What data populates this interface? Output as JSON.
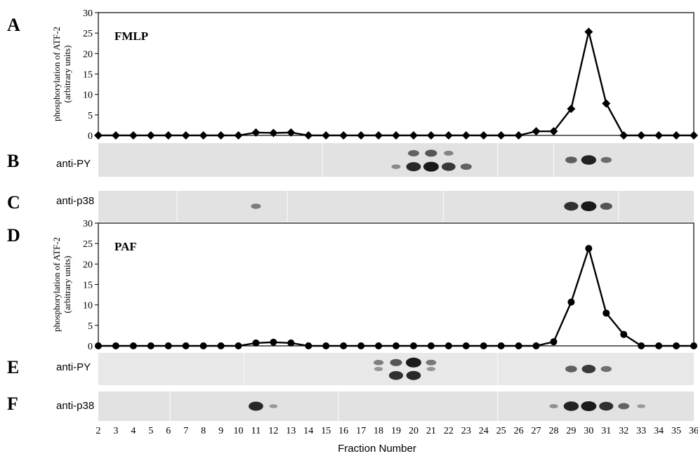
{
  "panel_letters": [
    "A",
    "B",
    "C",
    "D",
    "E",
    "F"
  ],
  "chart_data": [
    {
      "type": "line",
      "panel": "A",
      "title": "FMLP",
      "ylabel": "phosphorylation of ATF-2 (arbitrary units)",
      "ylabel_lines": [
        "phosphorylation of ATF-2",
        "(arbitrary units)"
      ],
      "xlabel": "",
      "ylim": [
        0,
        30
      ],
      "yticks": [
        0,
        5,
        10,
        15,
        20,
        25,
        30
      ],
      "grid": false,
      "series": [
        {
          "marker": "diamond",
          "x": [
            2,
            3,
            4,
            5,
            6,
            7,
            8,
            9,
            10,
            11,
            12,
            13,
            14,
            15,
            16,
            17,
            18,
            19,
            20,
            21,
            22,
            23,
            24,
            25,
            26,
            27,
            28,
            29,
            30,
            31,
            32,
            33,
            34,
            35,
            36
          ],
          "values": [
            0,
            0,
            0,
            0,
            0,
            0,
            0,
            0,
            0,
            0.7,
            0.6,
            0.7,
            0,
            0,
            0,
            0,
            0,
            0,
            0,
            0,
            0,
            0,
            0,
            0,
            0,
            1.0,
            1.0,
            6.5,
            25.3,
            7.8,
            0,
            0,
            0,
            0,
            0
          ]
        }
      ]
    },
    {
      "type": "line",
      "panel": "D",
      "title": "PAF",
      "ylabel": "phosphorylation of ATF-2 (arbitrary units)",
      "ylabel_lines": [
        "phosphorylation of ATF-2",
        "(arbitrary units)"
      ],
      "xlabel": "Fraction Number",
      "ylim": [
        0,
        30
      ],
      "yticks": [
        0,
        5,
        10,
        15,
        20,
        25,
        30
      ],
      "xticks": [
        2,
        3,
        4,
        5,
        6,
        7,
        8,
        9,
        10,
        11,
        12,
        13,
        14,
        15,
        16,
        17,
        18,
        19,
        20,
        21,
        22,
        23,
        24,
        25,
        26,
        27,
        28,
        29,
        30,
        31,
        32,
        33,
        34,
        35,
        36
      ],
      "grid": false,
      "series": [
        {
          "marker": "circle",
          "x": [
            2,
            3,
            4,
            5,
            6,
            7,
            8,
            9,
            10,
            11,
            12,
            13,
            14,
            15,
            16,
            17,
            18,
            19,
            20,
            21,
            22,
            23,
            24,
            25,
            26,
            27,
            28,
            29,
            30,
            31,
            32,
            33,
            34,
            35,
            36
          ],
          "values": [
            0,
            0,
            0,
            0,
            0,
            0,
            0,
            0,
            0,
            0.7,
            0.9,
            0.7,
            0,
            0,
            0,
            0,
            0,
            0,
            0,
            0,
            0,
            0,
            0,
            0,
            0,
            0,
            1.0,
            10.7,
            23.8,
            8.0,
            2.8,
            0,
            0,
            0,
            0
          ]
        }
      ]
    }
  ],
  "blots": [
    {
      "panel": "B",
      "label": "anti-PY",
      "band_color": "#1a1a1a",
      "segment_boundaries": [
        14.8,
        24.8,
        28.0
      ],
      "bands": [
        {
          "fraction": 19,
          "intensity": 0.25,
          "row": "low"
        },
        {
          "fraction": 20,
          "intensity": 0.9,
          "row": "low"
        },
        {
          "fraction": 20,
          "intensity": 0.5,
          "row": "high"
        },
        {
          "fraction": 21,
          "intensity": 1.0,
          "row": "low"
        },
        {
          "fraction": 21,
          "intensity": 0.6,
          "row": "high"
        },
        {
          "fraction": 22,
          "intensity": 0.8,
          "row": "low"
        },
        {
          "fraction": 22,
          "intensity": 0.3,
          "row": "high"
        },
        {
          "fraction": 23,
          "intensity": 0.5,
          "row": "low"
        },
        {
          "fraction": 29,
          "intensity": 0.55,
          "row": "mid"
        },
        {
          "fraction": 30,
          "intensity": 0.95,
          "row": "mid"
        },
        {
          "fraction": 31,
          "intensity": 0.45,
          "row": "mid"
        }
      ]
    },
    {
      "panel": "C",
      "label": "anti-p38",
      "band_color": "#1a1a1a",
      "segment_boundaries": [
        6.5,
        12.8,
        21.7,
        31.7
      ],
      "bands": [
        {
          "fraction": 11,
          "intensity": 0.35,
          "row": "mid"
        },
        {
          "fraction": 29,
          "intensity": 0.85,
          "row": "mid"
        },
        {
          "fraction": 30,
          "intensity": 1.0,
          "row": "mid"
        },
        {
          "fraction": 31,
          "intensity": 0.6,
          "row": "mid"
        }
      ]
    },
    {
      "panel": "E",
      "label": "anti-PY",
      "band_color": "#1a1a1a",
      "segment_boundaries": [
        10.3,
        24.8
      ],
      "bands": [
        {
          "fraction": 18,
          "intensity": 0.35,
          "row": "high"
        },
        {
          "fraction": 18,
          "intensity": 0.2,
          "row": "mid"
        },
        {
          "fraction": 19,
          "intensity": 0.6,
          "row": "high"
        },
        {
          "fraction": 19,
          "intensity": 0.85,
          "row": "low"
        },
        {
          "fraction": 20,
          "intensity": 1.0,
          "row": "high"
        },
        {
          "fraction": 20,
          "intensity": 0.9,
          "row": "low"
        },
        {
          "fraction": 21,
          "intensity": 0.4,
          "row": "high"
        },
        {
          "fraction": 21,
          "intensity": 0.2,
          "row": "mid"
        },
        {
          "fraction": 29,
          "intensity": 0.55,
          "row": "mid"
        },
        {
          "fraction": 30,
          "intensity": 0.8,
          "row": "mid"
        },
        {
          "fraction": 31,
          "intensity": 0.45,
          "row": "mid"
        }
      ]
    },
    {
      "panel": "F",
      "label": "anti-p38",
      "band_color": "#1a1a1a",
      "segment_boundaries": [
        6.1,
        15.7,
        24.8
      ],
      "bands": [
        {
          "fraction": 11,
          "intensity": 0.9,
          "row": "mid"
        },
        {
          "fraction": 12,
          "intensity": 0.15,
          "row": "mid"
        },
        {
          "fraction": 28,
          "intensity": 0.2,
          "row": "mid"
        },
        {
          "fraction": 29,
          "intensity": 0.95,
          "row": "mid"
        },
        {
          "fraction": 30,
          "intensity": 1.0,
          "row": "mid"
        },
        {
          "fraction": 31,
          "intensity": 0.85,
          "row": "mid"
        },
        {
          "fraction": 32,
          "intensity": 0.5,
          "row": "mid"
        },
        {
          "fraction": 33,
          "intensity": 0.15,
          "row": "mid"
        }
      ]
    }
  ]
}
